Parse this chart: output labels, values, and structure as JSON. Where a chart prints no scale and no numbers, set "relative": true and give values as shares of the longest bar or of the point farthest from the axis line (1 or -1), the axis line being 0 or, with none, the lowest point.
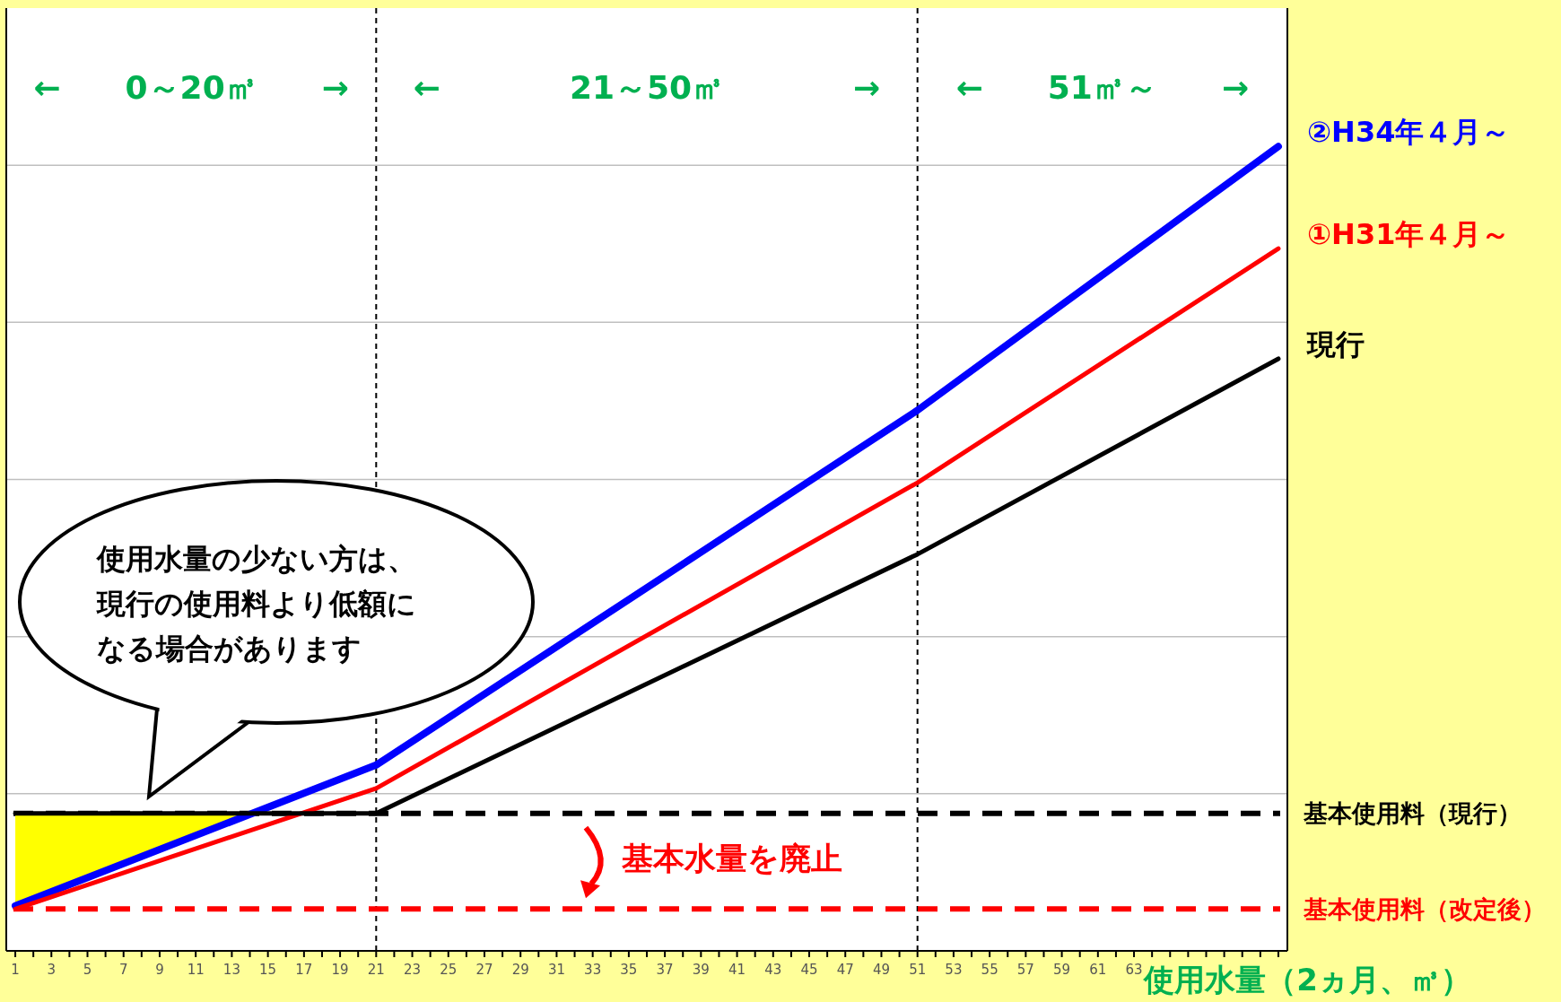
{
  "chart_data": {
    "type": "line",
    "relative": true,
    "xlabel": "使用水量（2ヵ月、㎥）",
    "x": [
      1,
      21,
      51,
      71
    ],
    "xlim": [
      0.5,
      71.5
    ],
    "xticks": [
      1,
      {
        "value": 2,
        "label": null
      },
      3,
      {
        "value": 4,
        "label": null
      },
      5,
      {
        "value": 6,
        "label": null
      },
      7,
      {
        "value": 8,
        "label": null
      },
      9,
      {
        "value": 10,
        "label": null
      },
      11,
      {
        "value": 12,
        "label": null
      },
      13,
      {
        "value": 14,
        "label": null
      },
      15,
      {
        "value": 16,
        "label": null
      },
      17,
      {
        "value": 18,
        "label": null
      },
      19,
      {
        "value": 20,
        "label": null
      },
      21,
      {
        "value": 22,
        "label": null
      },
      23,
      {
        "value": 24,
        "label": null
      },
      25,
      {
        "value": 26,
        "label": null
      },
      27,
      {
        "value": 28,
        "label": null
      },
      29,
      {
        "value": 30,
        "label": null
      },
      31,
      {
        "value": 32,
        "label": null
      },
      33,
      {
        "value": 34,
        "label": null
      },
      35,
      {
        "value": 36,
        "label": null
      },
      37,
      {
        "value": 38,
        "label": null
      },
      39,
      {
        "value": 40,
        "label": null
      },
      41,
      {
        "value": 42,
        "label": null
      },
      43,
      {
        "value": 44,
        "label": null
      },
      45,
      {
        "value": 46,
        "label": null
      },
      47,
      {
        "value": 48,
        "label": null
      },
      49,
      {
        "value": 50,
        "label": null
      },
      51,
      {
        "value": 52,
        "label": null
      },
      53,
      {
        "value": 54,
        "label": null
      },
      55,
      {
        "value": 56,
        "label": null
      },
      57,
      {
        "value": 58,
        "label": null
      },
      59,
      {
        "value": 60,
        "label": null
      },
      61,
      {
        "value": 62,
        "label": null
      },
      63,
      {
        "value": 64,
        "label": null
      },
      {
        "value": 65,
        "label": null
      },
      {
        "value": 66,
        "label": null
      },
      {
        "value": 67,
        "label": null
      },
      {
        "value": 68,
        "label": null
      },
      {
        "value": 69,
        "label": null
      },
      {
        "value": 70,
        "label": null
      },
      {
        "value": 71,
        "label": null
      }
    ],
    "grid": "y",
    "marker": "none",
    "line_style": "solid",
    "series": [
      {
        "type": "area",
        "color": "#ffff00",
        "x": [
          1,
          14
        ],
        "values": [
          0.171,
          0.171
        ]
      },
      {
        "name": "②H34年４月～",
        "color": "#0000ff",
        "values": [
          0.056,
          0.231,
          0.672,
          1
        ]
      },
      {
        "name": "①H31年４月～",
        "color": "#ff0000",
        "values": [
          0.052,
          0.202,
          0.582,
          0.873
        ]
      },
      {
        "name": "現行",
        "color": "#000000",
        "values": [
          0.171,
          0.171,
          0.493,
          0.736
        ]
      }
    ],
    "ref_lines": [
      {
        "axis": "x",
        "value": 21,
        "color": "#000000",
        "line_style": "dashed"
      },
      {
        "axis": "x",
        "value": 51,
        "color": "#000000",
        "line_style": "dashed"
      },
      {
        "axis": "y",
        "value": 0.171,
        "label": "基本使用料（現行）",
        "color": "#000000",
        "line_style": "dashed"
      },
      {
        "axis": "y",
        "value": 0.052,
        "label": "基本使用料（改定後）",
        "color": "#ff0000",
        "line_style": "dashed"
      }
    ],
    "annotations": [
      "←　　0～20㎥　　→",
      "←　　　　21～50㎥　　　　→",
      "←　　51㎥～　　→",
      "使用水量の少ない方は、現行の使用料より低額になる場合があります",
      "基本水量を廃止"
    ]
  }
}
